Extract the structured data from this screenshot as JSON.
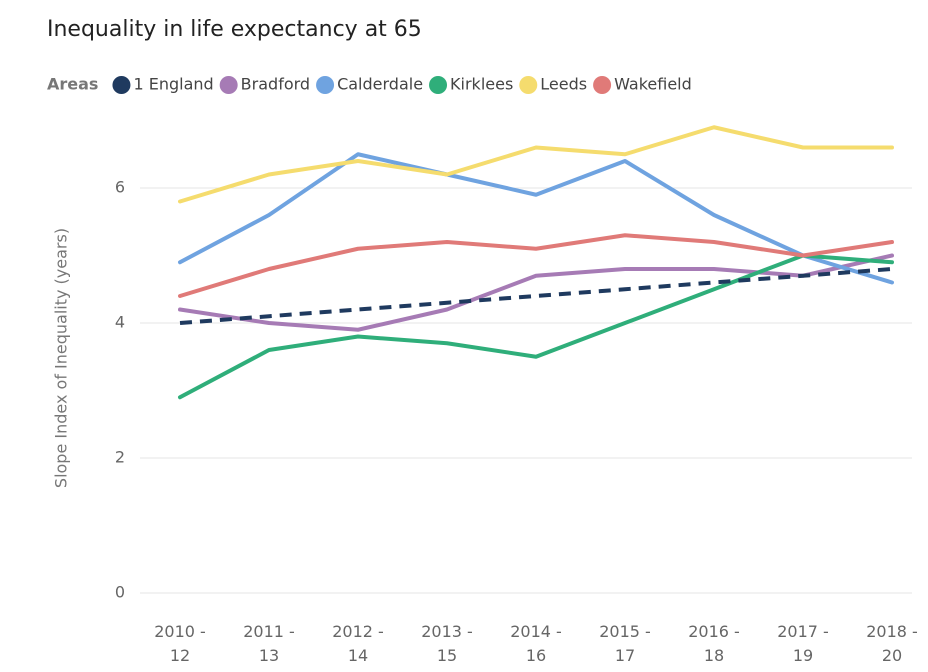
{
  "chart_data": {
    "type": "line",
    "title": "Inequality in life expectancy at 65",
    "legend_title": "Areas",
    "y_label": "Slope Index of Inequality (years)",
    "categories": [
      "2010 - 12",
      "2011 - 13",
      "2012 - 14",
      "2013 - 15",
      "2014 - 16",
      "2015 - 17",
      "2016 - 18",
      "2017 - 19",
      "2018 - 20"
    ],
    "series": [
      {
        "name": "1 England",
        "color": "#1f3a5f",
        "style": "dashed",
        "values": [
          4.0,
          4.1,
          4.2,
          4.3,
          4.4,
          4.5,
          4.6,
          4.7,
          4.8
        ]
      },
      {
        "name": "Bradford",
        "color": "#a67bb5",
        "style": "solid",
        "values": [
          4.2,
          4.0,
          3.9,
          4.2,
          4.7,
          4.8,
          4.8,
          4.7,
          5.0
        ]
      },
      {
        "name": "Calderdale",
        "color": "#6fa3e0",
        "style": "solid",
        "values": [
          4.9,
          5.6,
          6.5,
          6.2,
          5.9,
          6.4,
          5.6,
          5.0,
          4.6
        ]
      },
      {
        "name": "Kirklees",
        "color": "#2fae7a",
        "style": "solid",
        "values": [
          2.9,
          3.6,
          3.8,
          3.7,
          3.5,
          4.0,
          4.5,
          5.0,
          4.9
        ]
      },
      {
        "name": "Leeds",
        "color": "#f5dc6e",
        "style": "solid",
        "values": [
          5.8,
          6.2,
          6.4,
          6.2,
          6.6,
          6.5,
          6.9,
          6.6,
          6.6
        ]
      },
      {
        "name": "Wakefield",
        "color": "#e07a78",
        "style": "solid",
        "values": [
          4.4,
          4.8,
          5.1,
          5.2,
          5.1,
          5.3,
          5.2,
          5.0,
          5.2
        ]
      }
    ],
    "ylim": [
      0,
      7
    ],
    "yticks": [
      0,
      2,
      4,
      6
    ],
    "grid": true,
    "legend": "top-left"
  }
}
